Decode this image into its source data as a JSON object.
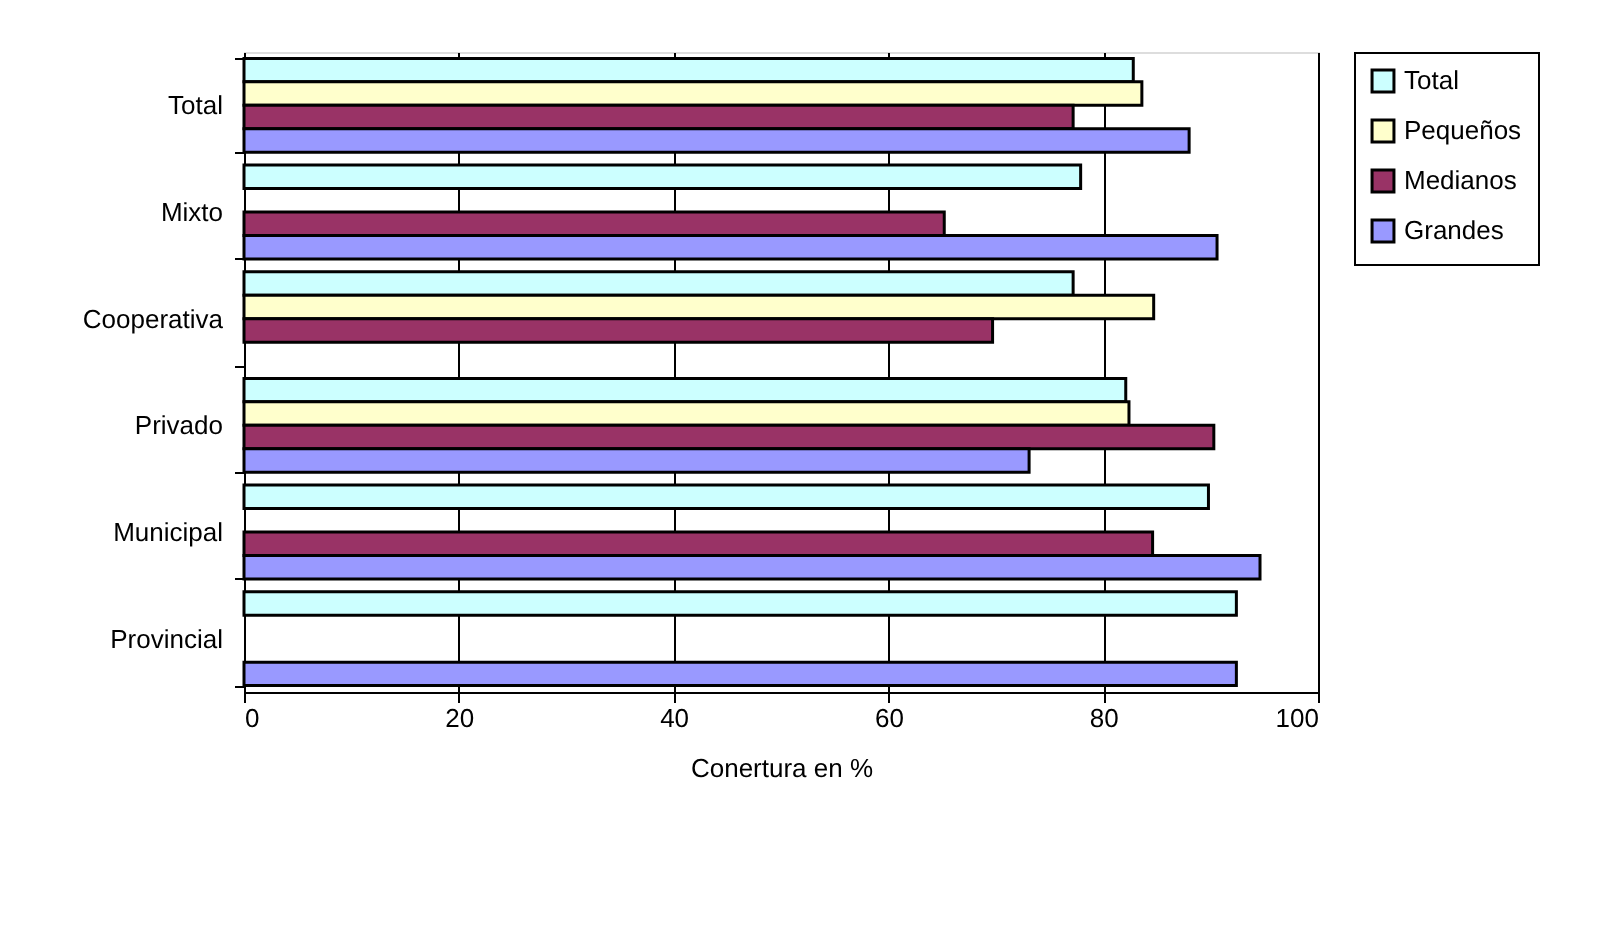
{
  "chart_data": {
    "type": "bar",
    "orientation": "horizontal",
    "xlabel": "Conertura en %",
    "categories": [
      "Total",
      "Mixto",
      "Cooperativa",
      "Privado",
      "Municipal",
      "Provincial"
    ],
    "series": [
      {
        "name": "Total",
        "color": "#ccffff",
        "values": [
          82.8,
          77.9,
          77.2,
          82.1,
          89.8,
          92.4
        ]
      },
      {
        "name": "Pequeños",
        "color": "#ffffcc",
        "values": [
          83.6,
          null,
          84.7,
          82.4,
          null,
          null
        ]
      },
      {
        "name": "Medianos",
        "color": "#993366",
        "values": [
          77.2,
          65.2,
          69.7,
          90.3,
          84.6,
          null
        ]
      },
      {
        "name": "Grandes",
        "color": "#9999ff",
        "values": [
          88.0,
          90.6,
          null,
          73.1,
          94.6,
          92.4
        ]
      }
    ],
    "xlim": [
      0,
      100
    ],
    "xticks": [
      0,
      20,
      40,
      60,
      80,
      100
    ],
    "grid": "x",
    "legend": "right"
  }
}
